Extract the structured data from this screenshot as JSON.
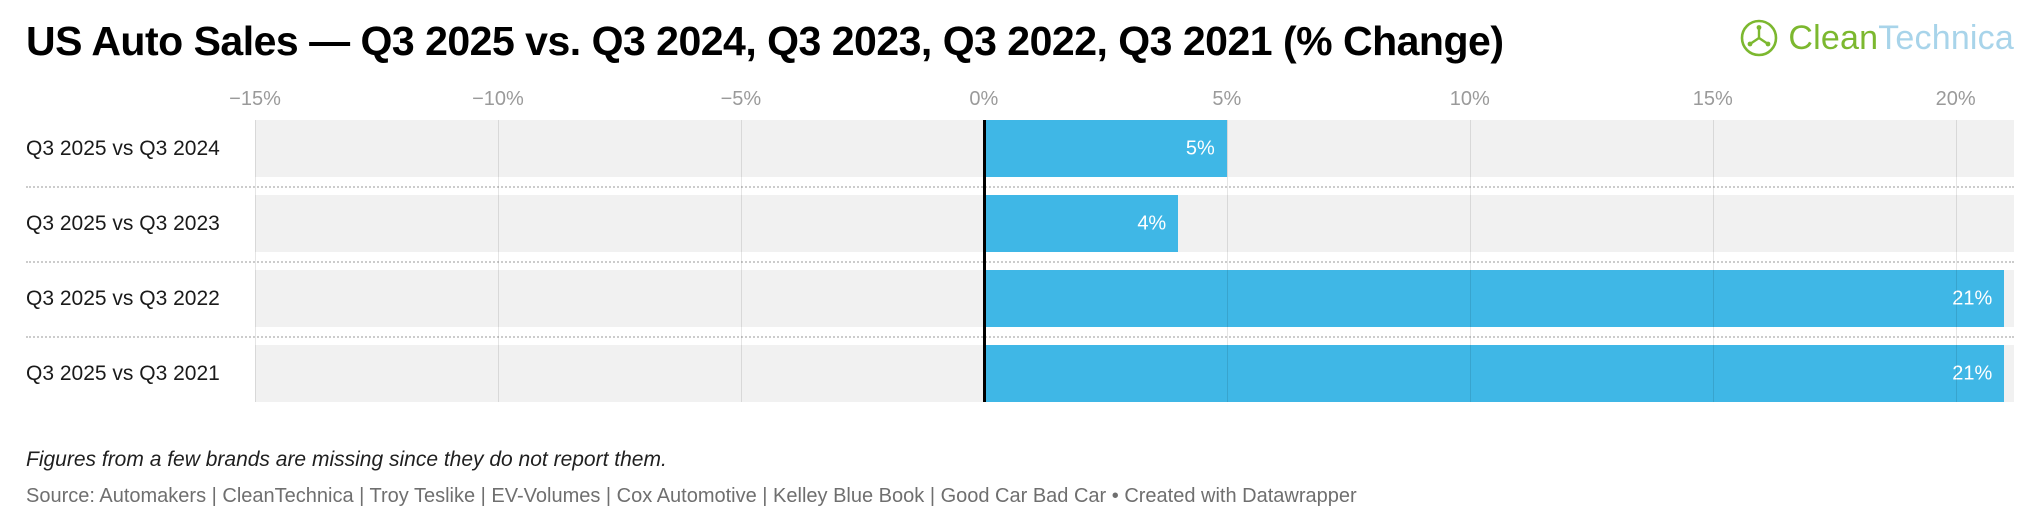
{
  "header": {
    "title": "US Auto Sales — Q3 2025 vs. Q3 2024, Q3 2023, Q3 2022, Q3 2021 (% Change)",
    "logo": {
      "part1": "Clean",
      "part2": "Technica"
    }
  },
  "chart_data": {
    "type": "bar",
    "orientation": "horizontal",
    "title": "US Auto Sales — Q3 2025 vs. Q3 2024, Q3 2023, Q3 2022, Q3 2021 (% Change)",
    "categories": [
      "Q3 2025 vs Q3 2024",
      "Q3 2025 vs Q3 2023",
      "Q3 2025 vs Q3 2022",
      "Q3 2025 vs Q3 2021"
    ],
    "values": [
      5,
      4,
      21,
      21
    ],
    "value_labels": [
      "5%",
      "4%",
      "21%",
      "21%"
    ],
    "xlim": [
      -15,
      21.2
    ],
    "x_ticks": [
      {
        "value": -15,
        "label": "−15%"
      },
      {
        "value": -10,
        "label": "−10%"
      },
      {
        "value": -5,
        "label": "−5%"
      },
      {
        "value": 0,
        "label": "0%"
      },
      {
        "value": 5,
        "label": "5%"
      },
      {
        "value": 10,
        "label": "10%"
      },
      {
        "value": 15,
        "label": "15%"
      },
      {
        "value": 20,
        "label": "20%"
      }
    ],
    "grid": true,
    "legend": "none",
    "bar_color": "#3fb7e6",
    "track_color": "#f1f1f1",
    "zero_line_color": "#000000"
  },
  "notes": {
    "footnote": "Figures from a few brands are missing since they do not report them.",
    "source": "Source: Automakers | CleanTechnica | Troy Teslike | EV-Volumes | Cox Automotive | Kelley Blue Book | Good Car Bad Car • Created with Datawrapper"
  }
}
